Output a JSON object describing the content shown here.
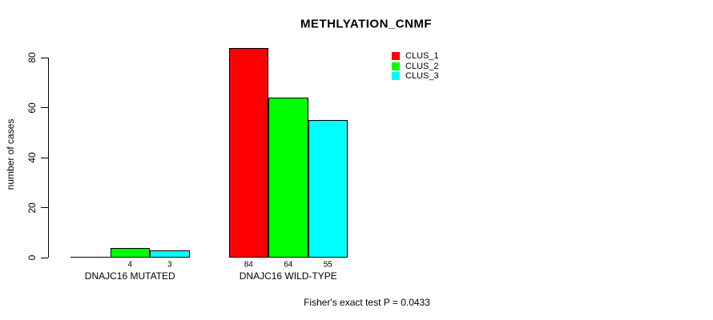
{
  "chart_data": {
    "type": "bar",
    "title": "METHLYATION_CNMF",
    "ylabel": "number of cases",
    "xlabel": "",
    "categories": [
      "DNAJC16 MUTATED",
      "DNAJC16 WILD-TYPE"
    ],
    "series": [
      {
        "name": "CLUS_1",
        "color": "#FF0000",
        "values": [
          0,
          84
        ]
      },
      {
        "name": "CLUS_2",
        "color": "#00FF00",
        "values": [
          4,
          64
        ]
      },
      {
        "name": "CLUS_3",
        "color": "#00FFFF",
        "values": [
          3,
          55
        ]
      }
    ],
    "bar_value_labels": [
      [
        "",
        "84"
      ],
      [
        "4",
        "64"
      ],
      [
        "3",
        "55"
      ]
    ],
    "yticks": [
      0,
      20,
      40,
      60,
      80
    ],
    "ylim": [
      0,
      84
    ],
    "grid": false,
    "legend_position": "top-right",
    "legend_entries": [
      "CLUS_1",
      "CLUS_2",
      "CLUS_3"
    ],
    "annotation": "Fisher's exact test P = 0.0433"
  },
  "colors": {
    "axis": "#000000",
    "text": "#000000",
    "bar_border": "#000000",
    "background": "#FFFFFF"
  }
}
